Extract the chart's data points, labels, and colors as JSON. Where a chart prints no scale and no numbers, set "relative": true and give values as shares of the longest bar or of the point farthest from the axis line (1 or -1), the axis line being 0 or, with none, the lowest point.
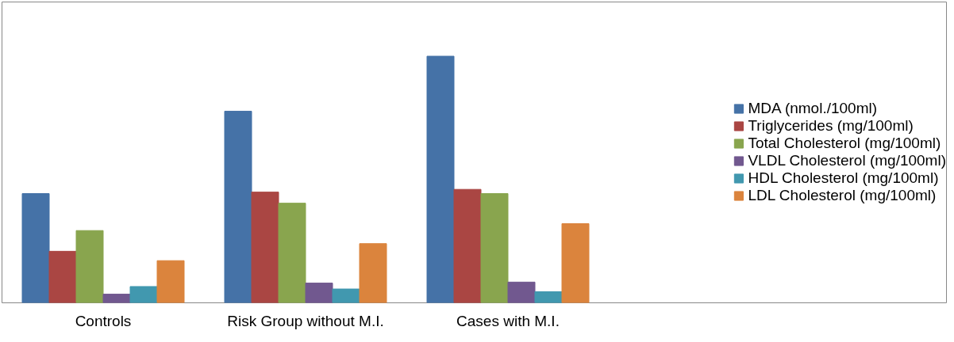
{
  "chart_data": {
    "type": "bar",
    "relative": true,
    "categories": [
      "Controls",
      "Risk Group without M.I.",
      "Cases with M.I."
    ],
    "legend": "right",
    "grid": false,
    "series": [
      {
        "name": "MDA (nmol./100ml)",
        "color": "#4572a7",
        "values": [
          0.443,
          0.777,
          1
        ]
      },
      {
        "name": "Triglycerides (mg/100ml)",
        "color": "#aa4643",
        "values": [
          0.209,
          0.449,
          0.46
        ]
      },
      {
        "name": "Total Cholesterol (mg/100ml)",
        "color": "#89a54e",
        "values": [
          0.293,
          0.404,
          0.443
        ]
      },
      {
        "name": "VLDL Cholesterol (mg/100ml)",
        "color": "#71588f",
        "values": [
          0.035,
          0.08,
          0.084
        ]
      },
      {
        "name": "HDL Cholesterol (mg/100ml)",
        "color": "#4198af",
        "values": [
          0.066,
          0.056,
          0.045
        ]
      },
      {
        "name": "LDL Cholesterol (mg/100ml)",
        "color": "#db843d",
        "values": [
          0.171,
          0.24,
          0.321
        ]
      }
    ]
  }
}
